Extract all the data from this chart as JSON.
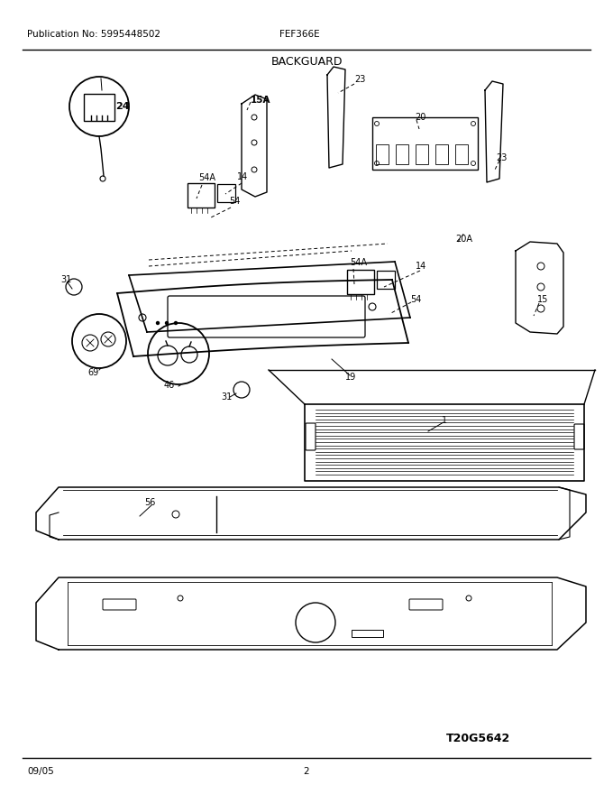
{
  "title": "BACKGUARD",
  "pub_no": "Publication No: 5995448502",
  "model": "FEF366E",
  "date": "09/05",
  "page": "2",
  "diagram_id": "T20G5642",
  "bg_color": "#ffffff",
  "line_color": "#000000",
  "text_color": "#000000"
}
